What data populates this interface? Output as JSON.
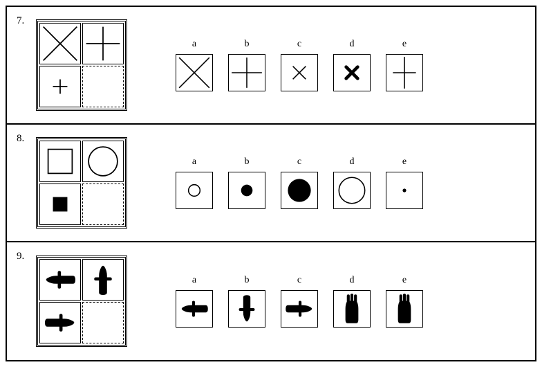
{
  "page": {
    "stroke": "#000000",
    "fill": "#000000",
    "bg": "#ffffff"
  },
  "questions": [
    {
      "number": "7.",
      "matrix": [
        {
          "shape": "x-large"
        },
        {
          "shape": "plus-large"
        },
        {
          "shape": "plus-small"
        },
        {
          "shape": "blank",
          "dashed": true
        }
      ],
      "answers": [
        {
          "label": "a",
          "shape": "x-large"
        },
        {
          "label": "b",
          "shape": "plus-large"
        },
        {
          "label": "c",
          "shape": "x-small"
        },
        {
          "label": "d",
          "shape": "x-bold-small"
        },
        {
          "label": "e",
          "shape": "plus-tall"
        }
      ]
    },
    {
      "number": "8.",
      "matrix": [
        {
          "shape": "square-outline-medium"
        },
        {
          "shape": "circle-outline-large"
        },
        {
          "shape": "square-fill-small"
        },
        {
          "shape": "blank",
          "dashed": true
        }
      ],
      "answers": [
        {
          "label": "a",
          "shape": "circle-outline-small"
        },
        {
          "label": "b",
          "shape": "circle-fill-small"
        },
        {
          "label": "c",
          "shape": "circle-fill-large"
        },
        {
          "label": "d",
          "shape": "circle-outline-large"
        },
        {
          "label": "e",
          "shape": "dot"
        }
      ]
    },
    {
      "number": "9.",
      "matrix": [
        {
          "shape": "hand-left"
        },
        {
          "shape": "hand-up"
        },
        {
          "shape": "hand-right-flat"
        },
        {
          "shape": "blank",
          "dashed": true
        }
      ],
      "answers": [
        {
          "label": "a",
          "shape": "hand-left"
        },
        {
          "label": "b",
          "shape": "hand-down"
        },
        {
          "label": "c",
          "shape": "hand-right-flat"
        },
        {
          "label": "d",
          "shape": "hand-up-narrow"
        },
        {
          "label": "e",
          "shape": "hand-up-narrow"
        }
      ]
    }
  ]
}
